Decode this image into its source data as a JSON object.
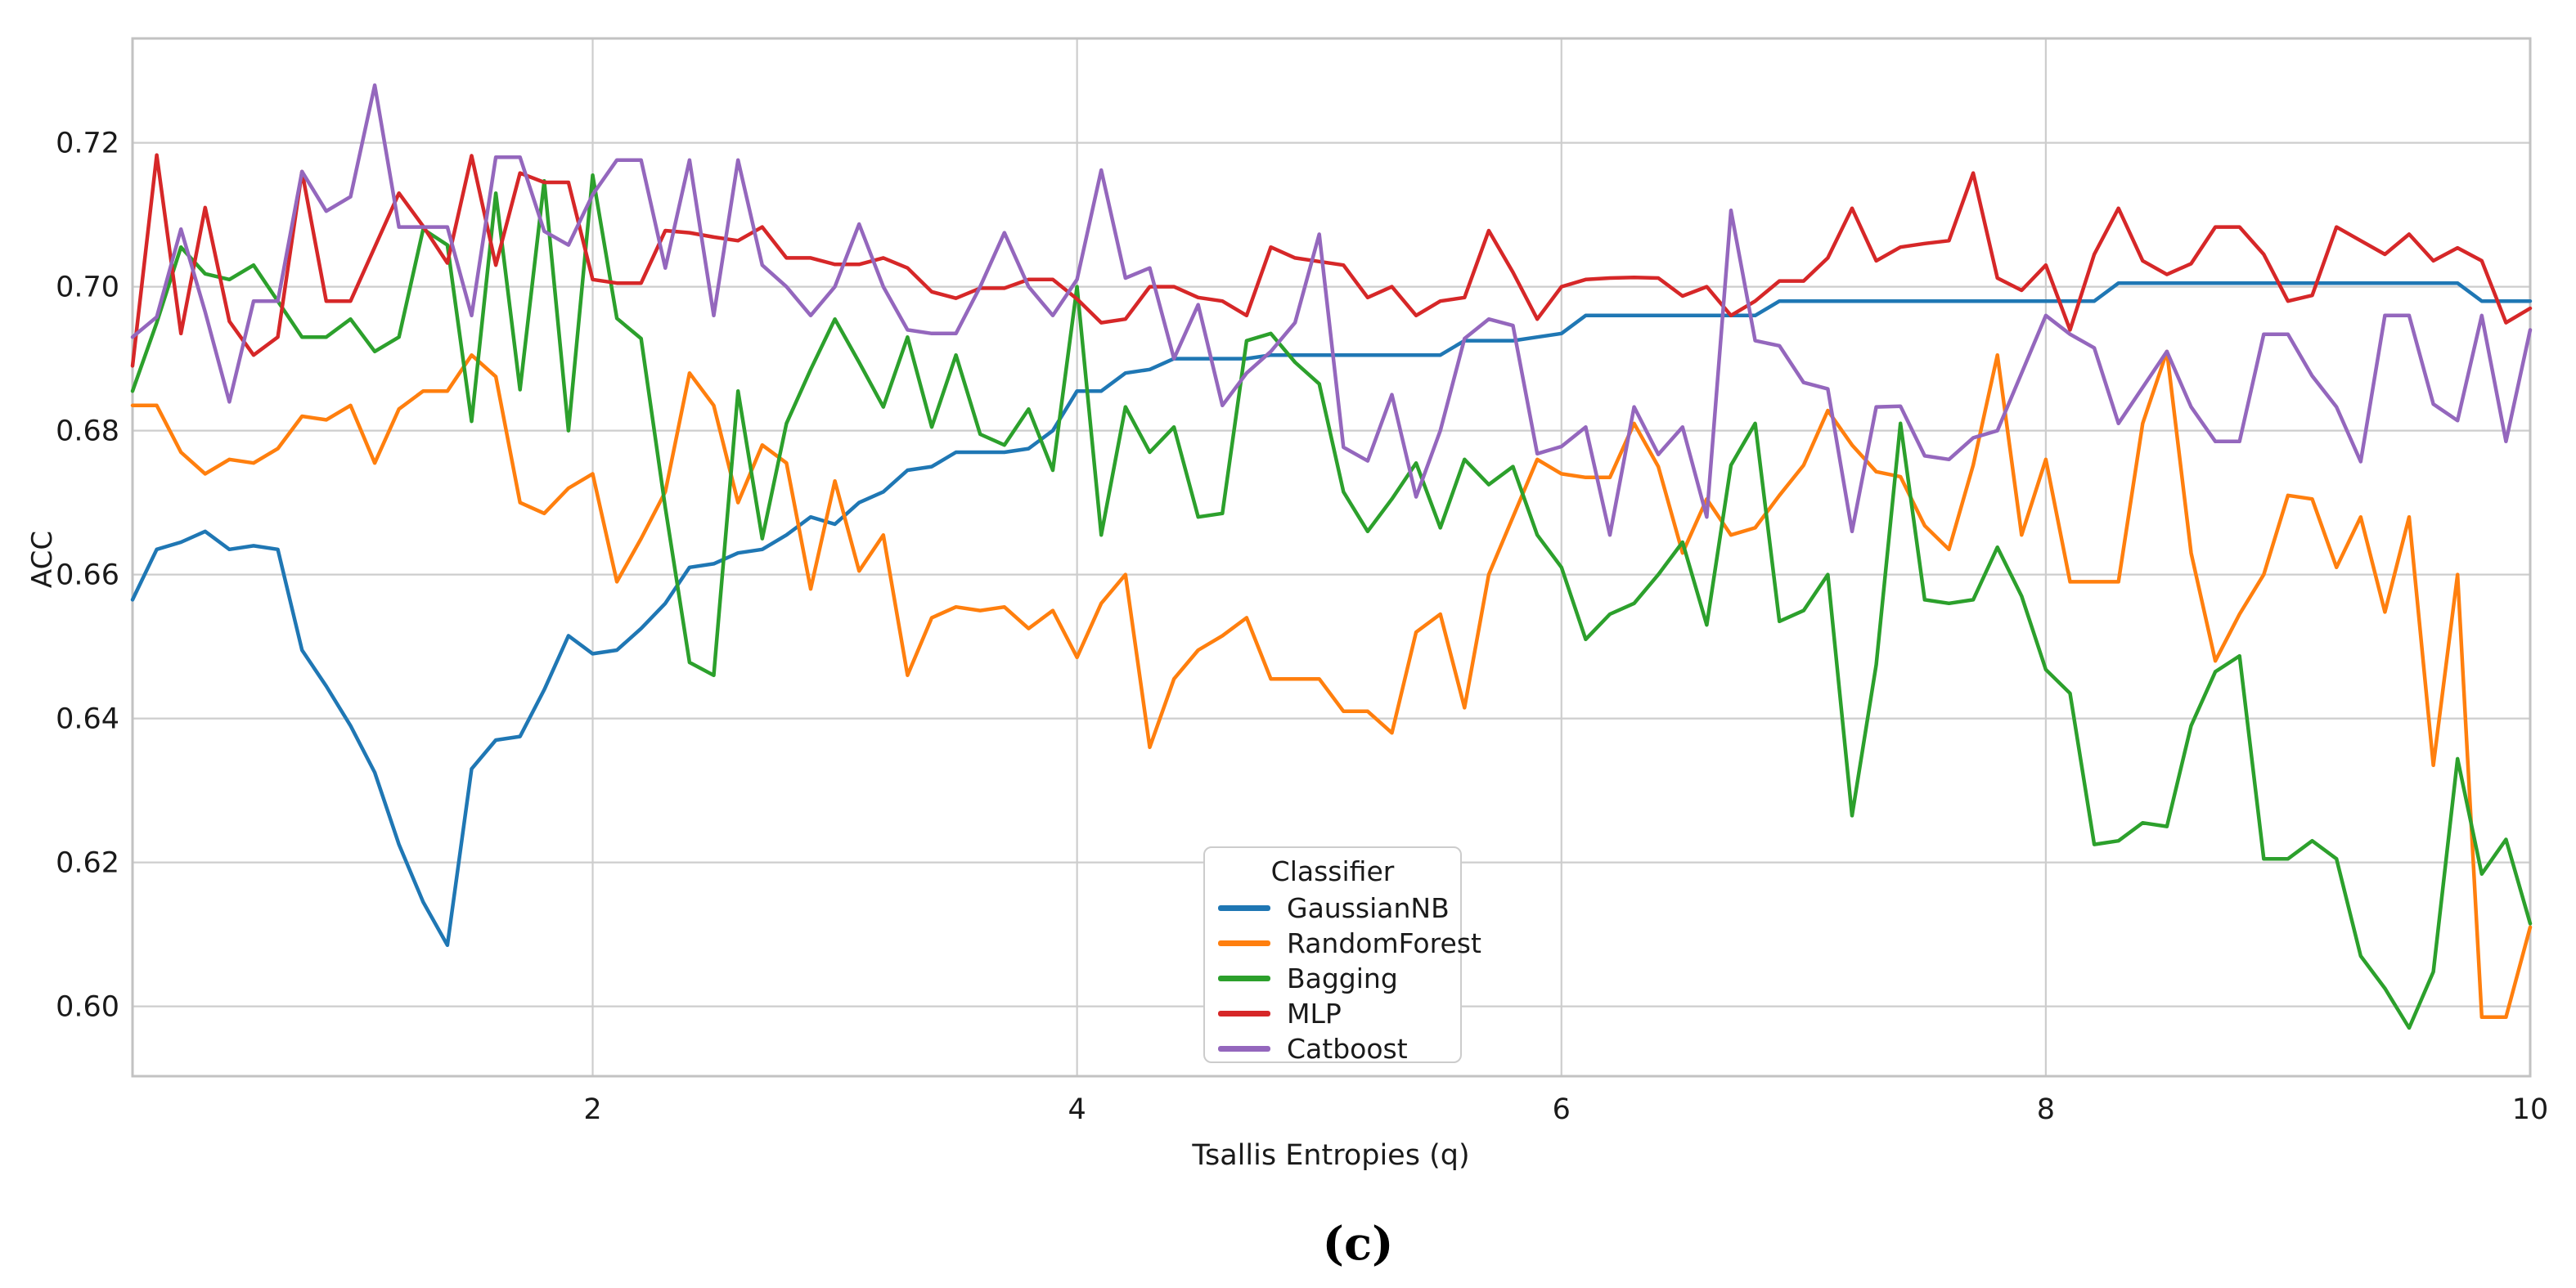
{
  "figure": {
    "caption": "(c)"
  },
  "colors": {
    "grid": "#cdcdcd",
    "border": "#c2c2c2",
    "text": "#1a1a1a",
    "background": "#ffffff"
  },
  "chart_data": {
    "type": "line",
    "title": "",
    "xlabel": "Tsallis Entropies (q)",
    "ylabel": "ACC",
    "xlim": [
      0.1,
      10
    ],
    "ylim": [
      0.5903,
      0.7345
    ],
    "grid": true,
    "xticks": [
      2,
      4,
      6,
      8,
      10
    ],
    "xtick_labels": [
      "2",
      "4",
      "6",
      "8",
      "10"
    ],
    "yticks": [
      0.6,
      0.62,
      0.64,
      0.66,
      0.68,
      0.7,
      0.72
    ],
    "ytick_labels": [
      "0.60",
      "0.62",
      "0.64",
      "0.66",
      "0.68",
      "0.70",
      "0.72"
    ],
    "legend": {
      "title": "Classifier",
      "position": "lower-center"
    },
    "x_start": 0.1,
    "x_step": 0.1,
    "n_points": 100,
    "series": [
      {
        "name": "GaussianNB",
        "key": "gaussiannb",
        "color": "#1f77b4",
        "values": [
          0.6565,
          0.6635,
          0.6645,
          0.666,
          0.6635,
          0.664,
          0.6635,
          0.6495,
          0.6445,
          0.639,
          0.6325,
          0.6225,
          0.6145,
          0.6085,
          0.633,
          0.637,
          0.6375,
          0.644,
          0.6515,
          0.649,
          0.6495,
          0.6525,
          0.656,
          0.661,
          0.6615,
          0.663,
          0.6635,
          0.6655,
          0.668,
          0.667,
          0.67,
          0.6715,
          0.6745,
          0.675,
          0.677,
          0.677,
          0.677,
          0.6775,
          0.68,
          0.6855,
          0.6855,
          0.688,
          0.6885,
          0.69,
          0.69,
          0.69,
          0.69,
          0.6905,
          0.6905,
          0.6905,
          0.6905,
          0.6905,
          0.6905,
          0.6905,
          0.6905,
          0.6925,
          0.6925,
          0.6925,
          0.693,
          0.6935,
          0.696,
          0.696,
          0.696,
          0.696,
          0.696,
          0.696,
          0.696,
          0.696,
          0.698,
          0.698,
          0.698,
          0.698,
          0.698,
          0.698,
          0.698,
          0.698,
          0.698,
          0.698,
          0.698,
          0.698,
          0.698,
          0.698,
          0.7005,
          0.7005,
          0.7005,
          0.7005,
          0.7005,
          0.7005,
          0.7005,
          0.7005,
          0.7005,
          0.7005,
          0.7005,
          0.7005,
          0.7005,
          0.7005,
          0.7005,
          0.698,
          0.698,
          0.698
        ]
      },
      {
        "name": "RandomForest",
        "key": "randomforest",
        "color": "#ff7f0e",
        "values": [
          0.6835,
          0.6835,
          0.677,
          0.674,
          0.676,
          0.6755,
          0.6775,
          0.682,
          0.6815,
          0.6835,
          0.6755,
          0.683,
          0.6855,
          0.6855,
          0.6905,
          0.6875,
          0.67,
          0.6685,
          0.672,
          0.674,
          0.659,
          0.665,
          0.6715,
          0.688,
          0.6835,
          0.67,
          0.678,
          0.6755,
          0.658,
          0.673,
          0.6605,
          0.6655,
          0.646,
          0.654,
          0.6555,
          0.655,
          0.6555,
          0.6525,
          0.655,
          0.6485,
          0.656,
          0.66,
          0.636,
          0.6455,
          0.6495,
          0.6515,
          0.654,
          0.6455,
          0.6455,
          0.6455,
          0.641,
          0.641,
          0.638,
          0.652,
          0.6545,
          0.6415,
          0.66,
          0.668,
          0.676,
          0.674,
          0.6735,
          0.6735,
          0.681,
          0.675,
          0.663,
          0.6705,
          0.6655,
          0.6665,
          0.671,
          0.6752,
          0.6828,
          0.678,
          0.6743,
          0.6736,
          0.6668,
          0.6635,
          0.6752,
          0.6905,
          0.6655,
          0.676,
          0.659,
          0.659,
          0.659,
          0.681,
          0.691,
          0.663,
          0.648,
          0.6545,
          0.66,
          0.671,
          0.6705,
          0.661,
          0.668,
          0.6548,
          0.668,
          0.6335,
          0.66,
          0.5985,
          0.5985,
          0.611
        ]
      },
      {
        "name": "Bagging",
        "key": "bagging",
        "color": "#2ca02c",
        "values": [
          0.6855,
          0.695,
          0.7055,
          0.7018,
          0.701,
          0.703,
          0.698,
          0.693,
          0.693,
          0.6955,
          0.691,
          0.693,
          0.708,
          0.7058,
          0.6813,
          0.713,
          0.6857,
          0.7147,
          0.68,
          0.7155,
          0.6956,
          0.6928,
          0.6693,
          0.6478,
          0.646,
          0.6855,
          0.665,
          0.681,
          0.6885,
          0.6955,
          0.6895,
          0.6833,
          0.693,
          0.6805,
          0.6905,
          0.6795,
          0.678,
          0.683,
          0.6745,
          0.7,
          0.6655,
          0.6833,
          0.677,
          0.6805,
          0.668,
          0.6685,
          0.6925,
          0.6935,
          0.6895,
          0.6865,
          0.6715,
          0.666,
          0.6705,
          0.6755,
          0.6665,
          0.676,
          0.6725,
          0.675,
          0.6655,
          0.661,
          0.651,
          0.6545,
          0.656,
          0.66,
          0.6645,
          0.653,
          0.6752,
          0.681,
          0.6535,
          0.655,
          0.66,
          0.6265,
          0.6475,
          0.681,
          0.6565,
          0.656,
          0.6565,
          0.6638,
          0.657,
          0.6468,
          0.6435,
          0.6225,
          0.623,
          0.6255,
          0.625,
          0.639,
          0.6465,
          0.6487,
          0.6205,
          0.6205,
          0.623,
          0.6205,
          0.607,
          0.6025,
          0.597,
          0.6048,
          0.6344,
          0.6184,
          0.6232,
          0.6115
        ]
      },
      {
        "name": "MLP",
        "key": "mlp",
        "color": "#d62728",
        "values": [
          0.689,
          0.7183,
          0.6935,
          0.711,
          0.6952,
          0.6905,
          0.693,
          0.716,
          0.698,
          0.698,
          0.7055,
          0.713,
          0.7084,
          0.7033,
          0.7182,
          0.703,
          0.7158,
          0.7145,
          0.7145,
          0.701,
          0.7005,
          0.7005,
          0.7078,
          0.7075,
          0.7069,
          0.7064,
          0.7083,
          0.704,
          0.704,
          0.7031,
          0.7031,
          0.704,
          0.7026,
          0.6993,
          0.6984,
          0.6998,
          0.6998,
          0.701,
          0.701,
          0.6983,
          0.695,
          0.6955,
          0.7,
          0.7,
          0.6985,
          0.698,
          0.696,
          0.7055,
          0.704,
          0.7035,
          0.703,
          0.6985,
          0.7,
          0.696,
          0.698,
          0.6985,
          0.7078,
          0.702,
          0.6955,
          0.7,
          0.701,
          0.7012,
          0.7013,
          0.7012,
          0.6987,
          0.7,
          0.696,
          0.698,
          0.7008,
          0.7008,
          0.704,
          0.7109,
          0.7036,
          0.7055,
          0.706,
          0.7064,
          0.7158,
          0.7012,
          0.6995,
          0.703,
          0.694,
          0.7045,
          0.7109,
          0.7036,
          0.7017,
          0.7032,
          0.7083,
          0.7083,
          0.7045,
          0.698,
          0.6988,
          0.7083,
          0.7064,
          0.7045,
          0.7073,
          0.7036,
          0.7054,
          0.7036,
          0.695,
          0.697
        ]
      },
      {
        "name": "Catboost",
        "key": "catboost",
        "color": "#9467bd",
        "values": [
          0.693,
          0.6958,
          0.708,
          0.6965,
          0.684,
          0.698,
          0.698,
          0.716,
          0.7105,
          0.7125,
          0.728,
          0.7083,
          0.7083,
          0.7083,
          0.696,
          0.718,
          0.718,
          0.7077,
          0.7058,
          0.7128,
          0.7176,
          0.7176,
          0.7026,
          0.7176,
          0.696,
          0.7176,
          0.703,
          0.7,
          0.696,
          0.7,
          0.7087,
          0.7,
          0.694,
          0.6935,
          0.6935,
          0.7,
          0.7075,
          0.7,
          0.696,
          0.701,
          0.7162,
          0.7012,
          0.7026,
          0.69,
          0.6975,
          0.6835,
          0.688,
          0.691,
          0.695,
          0.7073,
          0.6777,
          0.6758,
          0.685,
          0.6708,
          0.68,
          0.6928,
          0.6955,
          0.6946,
          0.6768,
          0.6778,
          0.6805,
          0.6655,
          0.6833,
          0.6767,
          0.6805,
          0.668,
          0.7106,
          0.6925,
          0.6918,
          0.6867,
          0.6858,
          0.666,
          0.6833,
          0.6834,
          0.6765,
          0.676,
          0.679,
          0.68,
          0.688,
          0.696,
          0.6934,
          0.6915,
          0.681,
          0.686,
          0.691,
          0.6833,
          0.6785,
          0.6785,
          0.6934,
          0.6934,
          0.6876,
          0.6833,
          0.6757,
          0.696,
          0.696,
          0.6837,
          0.6814,
          0.696,
          0.6785,
          0.694
        ]
      }
    ]
  }
}
